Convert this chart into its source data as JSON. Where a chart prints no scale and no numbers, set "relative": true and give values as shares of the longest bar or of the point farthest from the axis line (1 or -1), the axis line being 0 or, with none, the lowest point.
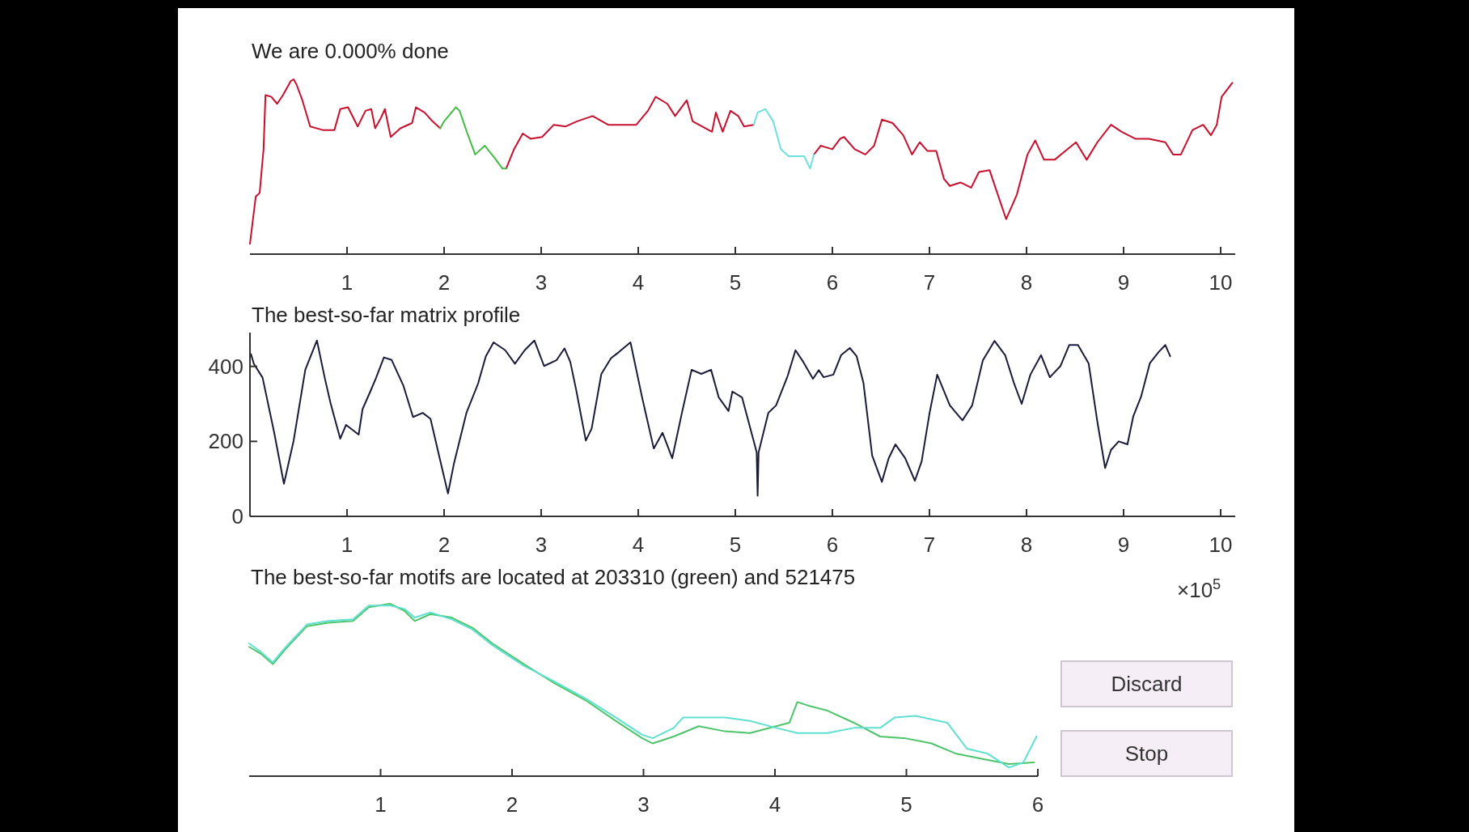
{
  "chart_data": [
    {
      "type": "line",
      "title": "We are 0.000% done",
      "relative": true,
      "xlim": [
        0,
        10.15
      ],
      "xticks": [
        1,
        2,
        3,
        4,
        5,
        6,
        7,
        8,
        9,
        10
      ],
      "series": [
        {
          "color": "#c8102e",
          "x": [
            0,
            0.02,
            0.06,
            0.1,
            0.14,
            0.16,
            0.22,
            0.28,
            0.34,
            0.42,
            0.45,
            0.48,
            0.54,
            0.62,
            0.75,
            0.87,
            0.93,
            1.01,
            1.11,
            1.19,
            1.25,
            1.29,
            1.35,
            1.39,
            1.45,
            1.55,
            1.67,
            1.71,
            1.8,
            1.88,
            1.96,
            2.3,
            2.64,
            2.72,
            2.81,
            2.89,
            3.01,
            3.13,
            3.25,
            3.37,
            3.53,
            3.69,
            3.86,
            3.98,
            4.1,
            4.18,
            4.3,
            4.38,
            4.5,
            4.56,
            4.66,
            4.76,
            4.8,
            4.87,
            4.95,
            5.03,
            5.09,
            5.19,
            5.5,
            5.81,
            5.88,
            6.0,
            6.08,
            6.12,
            6.23,
            6.34,
            6.43,
            6.51,
            6.62,
            6.73,
            6.82,
            6.9,
            6.98,
            7.07,
            7.15,
            7.21,
            7.32,
            7.43,
            7.51,
            7.62,
            7.68,
            7.79,
            7.9,
            8.01,
            8.09,
            8.18,
            8.29,
            8.4,
            8.51,
            8.62,
            8.73,
            8.87,
            8.98,
            9.12,
            9.26,
            9.43,
            9.51,
            9.59,
            9.71,
            9.82,
            9.9,
            9.96,
            10.01,
            10.12
          ],
          "values": [
            0.06,
            0.15,
            0.33,
            0.35,
            0.6,
            0.91,
            0.9,
            0.86,
            0.91,
            0.99,
            1.0,
            0.97,
            0.88,
            0.73,
            0.71,
            0.71,
            0.83,
            0.84,
            0.73,
            0.82,
            0.83,
            0.72,
            0.78,
            0.83,
            0.67,
            0.72,
            0.75,
            0.84,
            0.81,
            0.76,
            0.72,
            null,
            0.49,
            0.6,
            0.69,
            0.66,
            0.67,
            0.74,
            0.73,
            0.76,
            0.79,
            0.74,
            0.74,
            0.74,
            0.82,
            0.9,
            0.86,
            0.79,
            0.88,
            0.76,
            0.73,
            0.7,
            0.81,
            0.7,
            0.82,
            0.79,
            0.73,
            0.74,
            null,
            0.57,
            0.62,
            0.6,
            0.66,
            0.67,
            0.6,
            0.57,
            0.62,
            0.77,
            0.75,
            0.68,
            0.57,
            0.64,
            0.59,
            0.59,
            0.43,
            0.39,
            0.41,
            0.38,
            0.47,
            0.48,
            0.38,
            0.2,
            0.34,
            0.57,
            0.65,
            0.54,
            0.54,
            0.59,
            0.64,
            0.54,
            0.64,
            0.74,
            0.7,
            0.66,
            0.66,
            0.64,
            0.57,
            0.57,
            0.71,
            0.74,
            0.68,
            0.74,
            0.9,
            0.98
          ]
        },
        {
          "color": "#44bb44",
          "x": [
            1.96,
            2.0,
            2.12,
            2.16,
            2.24,
            2.32,
            2.42,
            2.52,
            2.6,
            2.64
          ],
          "values": [
            0.72,
            0.76,
            0.84,
            0.82,
            0.69,
            0.57,
            0.62,
            0.55,
            0.49,
            0.49
          ]
        },
        {
          "color": "#6fe0e0",
          "x": [
            5.19,
            5.23,
            5.31,
            5.39,
            5.47,
            5.55,
            5.71,
            5.77,
            5.81
          ],
          "values": [
            0.74,
            0.81,
            0.83,
            0.76,
            0.6,
            0.56,
            0.56,
            0.49,
            0.57
          ]
        }
      ]
    },
    {
      "type": "line",
      "title": "The best-so-far matrix profile",
      "xlim": [
        0,
        10.15
      ],
      "xticks": [
        1,
        2,
        3,
        4,
        5,
        6,
        7,
        8,
        9,
        10
      ],
      "ylim": [
        0,
        490
      ],
      "yticks": [
        0,
        200,
        400
      ],
      "annotations": [
        "×10$^{5}$"
      ],
      "series": [
        {
          "color": "#1a1a3a",
          "x": [
            0.01,
            0.04,
            0.13,
            0.25,
            0.35,
            0.45,
            0.57,
            0.69,
            0.77,
            0.83,
            0.93,
            0.99,
            1.12,
            1.16,
            1.24,
            1.3,
            1.38,
            1.46,
            1.58,
            1.68,
            1.78,
            1.86,
            1.94,
            2.04,
            2.1,
            2.23,
            2.35,
            2.43,
            2.51,
            2.63,
            2.73,
            2.83,
            2.93,
            3.03,
            3.16,
            3.24,
            3.3,
            3.36,
            3.46,
            3.52,
            3.62,
            3.72,
            3.8,
            3.92,
            4.04,
            4.16,
            4.25,
            4.35,
            4.45,
            4.55,
            4.65,
            4.75,
            4.83,
            4.93,
            4.97,
            5.07,
            5.22,
            5.23,
            5.24,
            5.34,
            5.42,
            5.54,
            5.62,
            5.7,
            5.8,
            5.86,
            5.91,
            6.01,
            6.09,
            6.18,
            6.25,
            6.32,
            6.41,
            6.51,
            6.58,
            6.65,
            6.75,
            6.85,
            6.92,
            7.0,
            7.08,
            7.21,
            7.34,
            7.44,
            7.55,
            7.67,
            7.78,
            7.87,
            7.95,
            8.04,
            8.15,
            8.24,
            8.35,
            8.44,
            8.53,
            8.64,
            8.73,
            8.81,
            8.87,
            8.95,
            9.04,
            9.1,
            9.18,
            9.27,
            9.36,
            9.43,
            9.48
          ],
          "values": [
            433,
            407,
            370,
            223,
            87,
            202,
            391,
            469,
            370,
            302,
            207,
            244,
            218,
            286,
            333,
            370,
            424,
            417,
            349,
            265,
            276,
            260,
            171,
            61,
            139,
            276,
            354,
            427,
            464,
            443,
            407,
            443,
            469,
            401,
            417,
            448,
            412,
            338,
            202,
            234,
            380,
            422,
            438,
            464,
            317,
            181,
            223,
            155,
            276,
            391,
            380,
            391,
            317,
            281,
            333,
            317,
            171,
            55,
            171,
            276,
            296,
            375,
            443,
            412,
            367,
            390,
            371,
            378,
            430,
            449,
            427,
            356,
            162,
            92,
            155,
            192,
            155,
            95,
            147,
            274,
            378,
            296,
            256,
            296,
            416,
            468,
            430,
            356,
            300,
            378,
            430,
            371,
            401,
            457,
            457,
            408,
            252,
            129,
            177,
            200,
            192,
            267,
            319,
            408,
            438,
            457,
            427
          ]
        }
      ]
    },
    {
      "type": "line",
      "title": "The best-so-far motifs are located at 203310 (green) and 521475",
      "relative": true,
      "xlim": [
        0,
        6
      ],
      "xticks": [
        1,
        2,
        3,
        4,
        5,
        6
      ],
      "annotations": [
        "Discard",
        "Stop"
      ],
      "series": [
        {
          "color": "#4cc46a",
          "x": [
            0,
            0.09,
            0.18,
            0.28,
            0.44,
            0.6,
            0.79,
            0.91,
            1.07,
            1.18,
            1.26,
            1.38,
            1.54,
            1.7,
            1.85,
            2.09,
            2.32,
            2.56,
            2.79,
            2.99,
            3.07,
            3.23,
            3.42,
            3.62,
            3.81,
            4.01,
            4.11,
            4.17,
            4.25,
            4.4,
            4.6,
            4.8,
            4.99,
            5.19,
            5.38,
            5.58,
            5.78,
            5.97
          ],
          "values": [
            0.75,
            0.71,
            0.65,
            0.74,
            0.87,
            0.89,
            0.9,
            0.98,
            1.0,
            0.96,
            0.9,
            0.94,
            0.92,
            0.86,
            0.77,
            0.65,
            0.54,
            0.44,
            0.32,
            0.22,
            0.19,
            0.23,
            0.29,
            0.26,
            0.25,
            0.29,
            0.31,
            0.43,
            0.41,
            0.38,
            0.31,
            0.23,
            0.22,
            0.19,
            0.13,
            0.1,
            0.07,
            0.08
          ]
        },
        {
          "color": "#5fe0d0",
          "x": [
            0,
            0.09,
            0.18,
            0.28,
            0.44,
            0.6,
            0.79,
            0.91,
            1.07,
            1.18,
            1.26,
            1.38,
            1.54,
            1.7,
            1.85,
            2.09,
            2.32,
            2.56,
            2.79,
            2.99,
            3.07,
            3.23,
            3.3,
            3.62,
            3.81,
            4.01,
            4.17,
            4.4,
            4.6,
            4.8,
            4.91,
            5.07,
            5.31,
            5.46,
            5.62,
            5.78,
            5.89,
            5.99
          ],
          "values": [
            0.77,
            0.72,
            0.66,
            0.75,
            0.88,
            0.9,
            0.91,
            0.99,
            0.99,
            0.97,
            0.92,
            0.95,
            0.91,
            0.85,
            0.76,
            0.64,
            0.55,
            0.45,
            0.34,
            0.24,
            0.22,
            0.28,
            0.34,
            0.34,
            0.32,
            0.28,
            0.25,
            0.25,
            0.28,
            0.28,
            0.34,
            0.35,
            0.31,
            0.16,
            0.13,
            0.05,
            0.08,
            0.23
          ]
        }
      ]
    }
  ]
}
